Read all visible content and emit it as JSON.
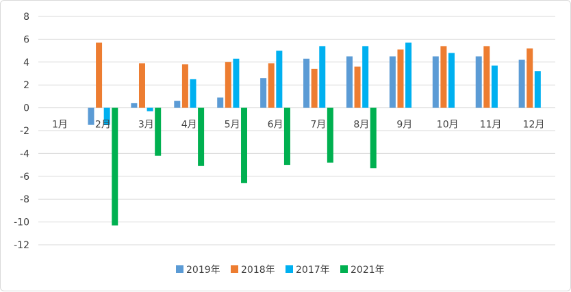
{
  "chart_data": {
    "type": "bar",
    "title": "",
    "xlabel": "",
    "ylabel": "",
    "categories": [
      "1月",
      "2月",
      "3月",
      "4月",
      "5月",
      "6月",
      "7月",
      "8月",
      "9月",
      "10月",
      "11月",
      "12月"
    ],
    "ylim": [
      -12,
      8
    ],
    "yticks": [
      8,
      6,
      4,
      2,
      0,
      -2,
      -4,
      -6,
      -8,
      -10,
      -12
    ],
    "grid": true,
    "legend_position": "bottom",
    "series": [
      {
        "name": "2019年",
        "color": "#5B9BD5",
        "values": [
          null,
          -1.5,
          0.4,
          0.6,
          0.9,
          2.6,
          4.3,
          4.5,
          4.5,
          4.5,
          4.5,
          4.2
        ]
      },
      {
        "name": "2018年",
        "color": "#ED7D31",
        "values": [
          null,
          5.7,
          3.9,
          3.8,
          4.0,
          3.9,
          3.4,
          3.6,
          5.1,
          5.4,
          5.4,
          5.2
        ]
      },
      {
        "name": "2017年",
        "color": "#00B0F0",
        "values": [
          null,
          -1.5,
          -0.3,
          2.5,
          4.3,
          5.0,
          5.4,
          5.4,
          5.7,
          4.8,
          3.7,
          3.2
        ]
      },
      {
        "name": "2021年",
        "color": "#00B050",
        "values": [
          null,
          -10.3,
          -4.2,
          -5.1,
          -6.6,
          -5.0,
          -4.8,
          -5.3,
          null,
          null,
          null,
          null
        ]
      }
    ]
  }
}
